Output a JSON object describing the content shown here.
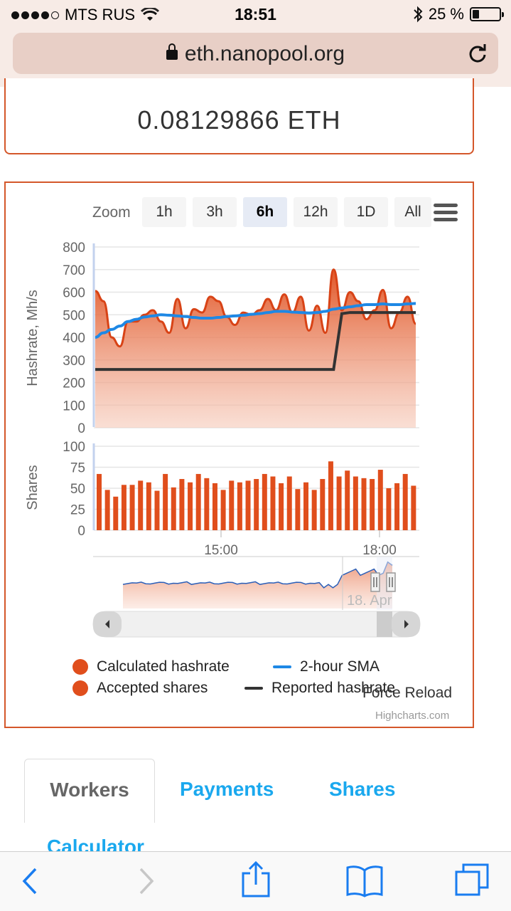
{
  "status_bar": {
    "carrier": "MTS RUS",
    "time": "18:51",
    "battery_percent": "25 %",
    "battery_level": 0.25
  },
  "browser": {
    "url": "eth.nanopool.org"
  },
  "balance": {
    "value": "0.08129866 ETH"
  },
  "chart_toolbar": {
    "zoom_label": "Zoom",
    "buttons": [
      "1h",
      "3h",
      "6h",
      "12h",
      "1D",
      "All"
    ],
    "active": "6h"
  },
  "chart_data": {
    "type": "line",
    "top_panel": {
      "ylabel": "Hashrate, Mh/s",
      "ylim": [
        0,
        800
      ],
      "yticks": [
        "0",
        "100",
        "200",
        "300",
        "400",
        "500",
        "600",
        "700",
        "800"
      ],
      "series": [
        {
          "name": "Calculated hashrate",
          "kind": "area",
          "color": "#e04e1c",
          "values": [
            605,
            560,
            400,
            360,
            470,
            470,
            500,
            520,
            470,
            420,
            570,
            440,
            525,
            510,
            580,
            560,
            490,
            455,
            510,
            500,
            520,
            570,
            520,
            590,
            510,
            580,
            430,
            540,
            420,
            700,
            520,
            600,
            560,
            480,
            520,
            610,
            440,
            510,
            580,
            460
          ]
        },
        {
          "name": "2-hour SMA",
          "kind": "line",
          "color": "#1e88e5",
          "values": [
            400,
            420,
            435,
            450,
            470,
            480,
            490,
            495,
            500,
            498,
            495,
            492,
            488,
            485,
            485,
            488,
            492,
            495,
            498,
            502,
            505,
            510,
            515,
            515,
            512,
            510,
            508,
            510,
            515,
            525,
            530,
            535,
            540,
            545,
            545,
            548,
            545,
            545,
            548,
            550
          ]
        },
        {
          "name": "Reported hashrate",
          "kind": "line",
          "color": "#333333",
          "values": [
            258,
            258,
            258,
            258,
            258,
            258,
            258,
            258,
            258,
            258,
            258,
            258,
            258,
            258,
            258,
            258,
            258,
            258,
            258,
            258,
            258,
            258,
            258,
            258,
            258,
            258,
            258,
            258,
            258,
            258,
            505,
            510,
            510,
            510,
            510,
            510,
            510,
            510,
            510,
            510
          ]
        }
      ]
    },
    "bottom_panel": {
      "ylabel": "Shares",
      "ylim": [
        0,
        100
      ],
      "yticks": [
        "0",
        "25",
        "50",
        "75",
        "100"
      ],
      "series": [
        {
          "name": "Accepted shares",
          "kind": "bar",
          "color": "#e04e1c",
          "values": [
            67,
            48,
            40,
            54,
            54,
            59,
            57,
            47,
            67,
            51,
            61,
            57,
            67,
            62,
            56,
            48,
            59,
            57,
            59,
            61,
            67,
            64,
            56,
            64,
            49,
            57,
            48,
            61,
            82,
            64,
            71,
            64,
            62,
            61,
            72,
            50,
            56,
            67,
            53
          ]
        }
      ]
    },
    "xticks": [
      "15:00",
      "18:00"
    ],
    "navigator_label": "18. Apr",
    "legend": [
      "Calculated hashrate",
      "2-hour SMA",
      "Accepted shares",
      "Reported hashrate"
    ],
    "legend_placement": "bottom"
  },
  "chart_footer": {
    "force_reload": "Force Reload",
    "credits": "Highcharts.com"
  },
  "tabs": {
    "workers": "Workers",
    "payments": "Payments",
    "shares": "Shares",
    "calculator": "Calculator"
  }
}
